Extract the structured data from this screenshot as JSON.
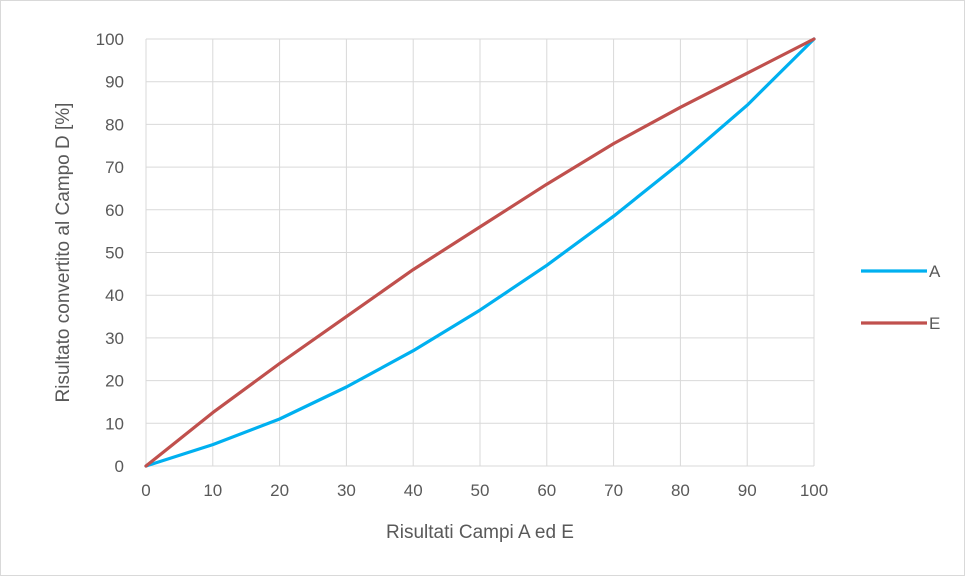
{
  "chart_data": {
    "type": "line",
    "xlabel": "Risultati Campi A ed E",
    "ylabel": "Risultato convertito al Campo D [%]",
    "xlim": [
      0,
      100
    ],
    "ylim": [
      0,
      100
    ],
    "xticks": [
      0,
      10,
      20,
      30,
      40,
      50,
      60,
      70,
      80,
      90,
      100
    ],
    "yticks": [
      0,
      10,
      20,
      30,
      40,
      50,
      60,
      70,
      80,
      90,
      100
    ],
    "grid": true,
    "legend_position": "right",
    "x": [
      0,
      10,
      20,
      30,
      40,
      50,
      60,
      70,
      80,
      90,
      100
    ],
    "series": [
      {
        "name": "A",
        "color": "#00b0f0",
        "values": [
          0,
          5,
          11,
          18.5,
          27,
          36.5,
          47,
          58.5,
          71,
          84.5,
          100
        ]
      },
      {
        "name": "E",
        "color": "#c0504d",
        "values": [
          0,
          12.5,
          24,
          35,
          46,
          56,
          66,
          75.5,
          84,
          92,
          100
        ]
      }
    ]
  }
}
